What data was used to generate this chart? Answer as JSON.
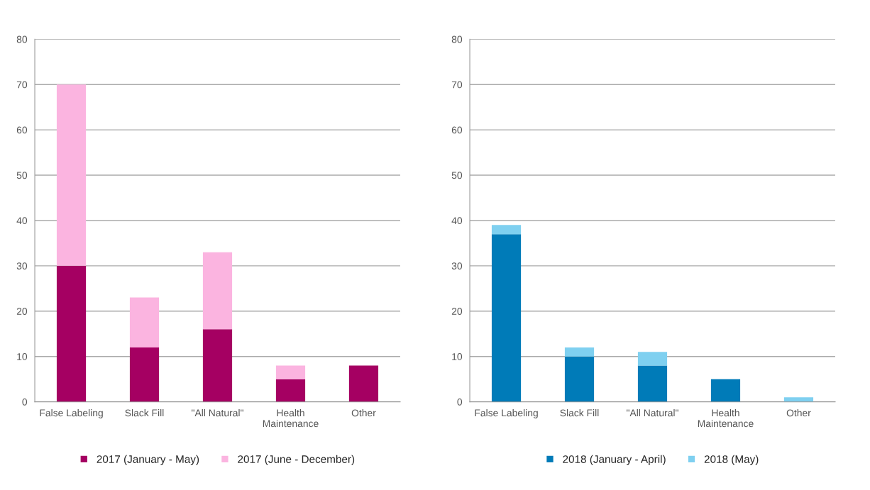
{
  "chart_data": [
    {
      "type": "bar",
      "stacked": true,
      "categories": [
        "False Labeling",
        "Slack Fill",
        "\"All Natural\"",
        "Health\nMaintenance",
        "Other"
      ],
      "ylim": [
        0,
        80
      ],
      "yticks": [
        0,
        10,
        20,
        30,
        40,
        50,
        60,
        70,
        80
      ],
      "grid": "y",
      "legend": "bottom",
      "series": [
        {
          "name": "2017 (January - May)",
          "color": "#a50062",
          "values": [
            30,
            12,
            16,
            5,
            8
          ]
        },
        {
          "name": "2017 (June - December)",
          "color": "#fbb4e0",
          "values": [
            40,
            11,
            17,
            3,
            null
          ]
        }
      ]
    },
    {
      "type": "bar",
      "stacked": true,
      "categories": [
        "False Labeling",
        "Slack Fill",
        "\"All Natural\"",
        "Health\nMaintenance",
        "Other"
      ],
      "ylim": [
        0,
        80
      ],
      "yticks": [
        0,
        10,
        20,
        30,
        40,
        50,
        60,
        70,
        80
      ],
      "grid": "y",
      "legend": "bottom",
      "series": [
        {
          "name": "2018 (January - April)",
          "color": "#007bb8",
          "values": [
            37,
            10,
            8,
            5,
            null
          ]
        },
        {
          "name": "2018 (May)",
          "color": "#7fd0f0",
          "values": [
            2,
            2,
            3,
            null,
            1
          ]
        }
      ]
    }
  ]
}
